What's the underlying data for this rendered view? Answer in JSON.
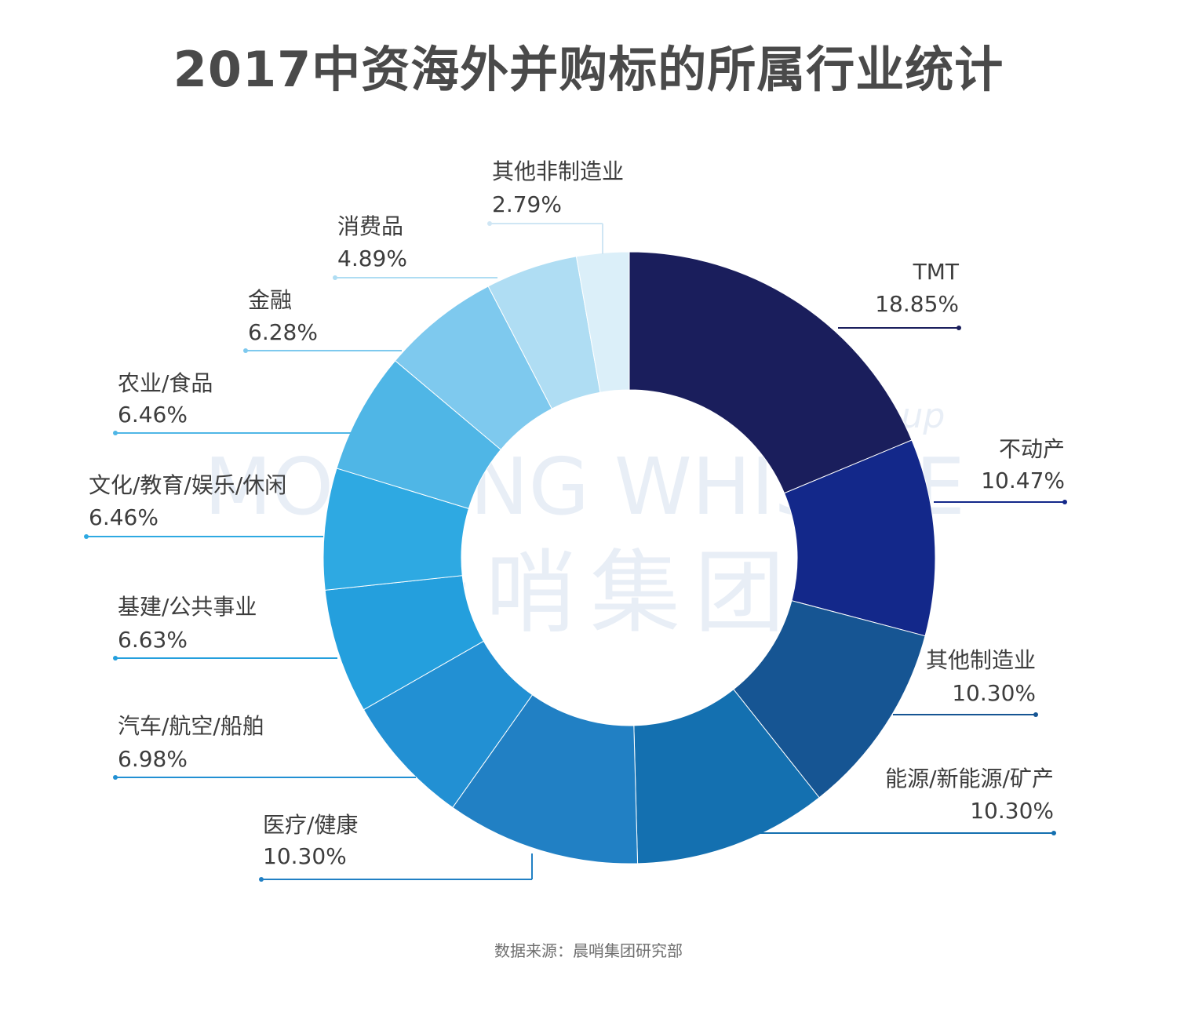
{
  "title": "2017中资海外并购标的所属行业统计",
  "source": "数据来源：晨哨集团研究部",
  "watermark": {
    "en": "MORNING WHISTLE",
    "group": "group",
    "cn": "晨哨集团"
  },
  "chart_data": {
    "type": "pie",
    "title": "2017中资海外并购标的所属行业统计",
    "unit": "%",
    "start_angle": "12 o'clock, clockwise",
    "slices": [
      {
        "label": "TMT",
        "value": 18.85,
        "value_text": "18.85%",
        "color": "#1a1e5c"
      },
      {
        "label": "不动产",
        "value": 10.47,
        "value_text": "10.47%",
        "color": "#13288a"
      },
      {
        "label": "其他制造业",
        "value": 10.3,
        "value_text": "10.30%",
        "color": "#165593"
      },
      {
        "label": "能源/新能源/矿产",
        "value": 10.3,
        "value_text": "10.30%",
        "color": "#1470b0"
      },
      {
        "label": "医疗/健康",
        "value": 10.3,
        "value_text": "10.30%",
        "color": "#2180c4"
      },
      {
        "label": "汽车/航空/船舶",
        "value": 6.98,
        "value_text": "6.98%",
        "color": "#2290d3"
      },
      {
        "label": "基建/公共事业",
        "value": 6.63,
        "value_text": "6.63%",
        "color": "#249fdd"
      },
      {
        "label": "文化/教育/娱乐/休闲",
        "value": 6.46,
        "value_text": "6.46%",
        "color": "#2ea9e2"
      },
      {
        "label": "农业/食品",
        "value": 6.46,
        "value_text": "6.46%",
        "color": "#4fb6e6"
      },
      {
        "label": "金融",
        "value": 6.28,
        "value_text": "6.28%",
        "color": "#7ec9ee"
      },
      {
        "label": "消费品",
        "value": 4.89,
        "value_text": "4.89%",
        "color": "#afddf3"
      },
      {
        "label": "其他非制造业",
        "value": 2.79,
        "value_text": "2.79%",
        "color": "#dbeff9"
      }
    ]
  }
}
